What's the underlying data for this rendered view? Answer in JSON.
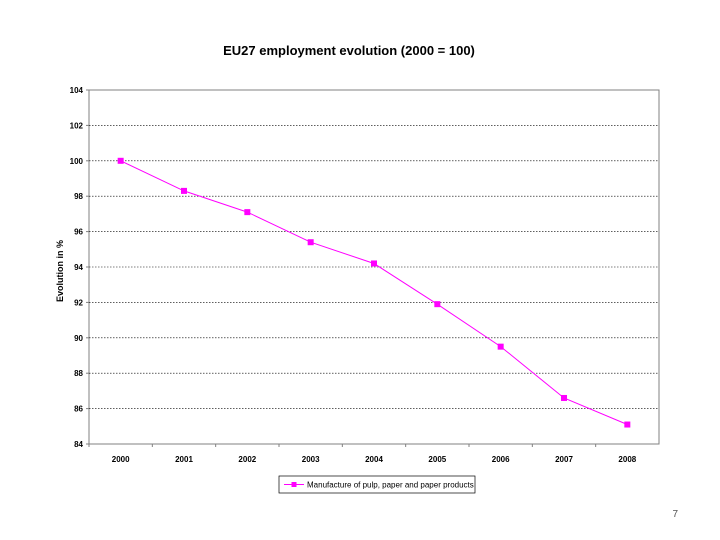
{
  "page": {
    "number": "7"
  },
  "chart_data": {
    "type": "line",
    "title": "EU27 employment evolution (2000 = 100)",
    "xlabel": "",
    "ylabel": "Evolution in %",
    "categories": [
      "2000",
      "2001",
      "2002",
      "2003",
      "2004",
      "2005",
      "2006",
      "2007",
      "2008"
    ],
    "series": [
      {
        "name": "Manufacture of pulp, paper and paper products",
        "values": [
          100.0,
          98.3,
          97.1,
          95.4,
          94.2,
          91.9,
          89.5,
          86.6,
          85.1
        ],
        "color": "#ff00ff"
      }
    ],
    "ylim": [
      84,
      104
    ],
    "yticks": [
      "84",
      "86",
      "88",
      "90",
      "92",
      "94",
      "96",
      "98",
      "100",
      "102",
      "104"
    ],
    "grid": true,
    "legend_position": "bottom",
    "plot_background": "#c0c0c0"
  }
}
